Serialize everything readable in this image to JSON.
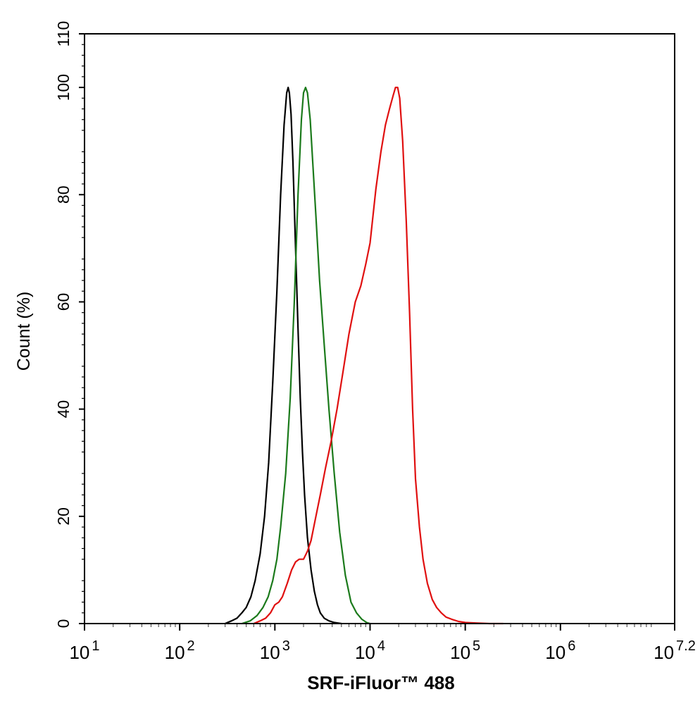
{
  "chart_data": {
    "type": "line",
    "title": "",
    "xlabel": "SRF-iFluor™ 488",
    "ylabel": "Count  (%)",
    "x_scale": "log",
    "xlim": [
      10,
      15848932
    ],
    "ylim": [
      0,
      110
    ],
    "grid": false,
    "legend": "none",
    "y_ticks": [
      {
        "value": 0,
        "label": "0"
      },
      {
        "value": 20,
        "label": "20"
      },
      {
        "value": 40,
        "label": "40"
      },
      {
        "value": 60,
        "label": "60"
      },
      {
        "value": 80,
        "label": "80"
      },
      {
        "value": 100,
        "label": "100"
      },
      {
        "value": 110,
        "label": "110"
      }
    ],
    "x_ticks": [
      {
        "value": 10,
        "base": "10",
        "exp": "1"
      },
      {
        "value": 100,
        "base": "10",
        "exp": "2"
      },
      {
        "value": 1000,
        "base": "10",
        "exp": "3"
      },
      {
        "value": 10000,
        "base": "10",
        "exp": "4"
      },
      {
        "value": 100000,
        "base": "10",
        "exp": "5"
      },
      {
        "value": 1000000,
        "base": "10",
        "exp": "6"
      },
      {
        "value": 15848932,
        "base": "10",
        "exp": "7.2"
      }
    ],
    "series": [
      {
        "color": "#000000",
        "x": [
          300,
          350,
          400,
          450,
          500,
          560,
          620,
          700,
          780,
          860,
          950,
          1050,
          1150,
          1250,
          1330,
          1380,
          1420,
          1480,
          1550,
          1650,
          1750,
          1850,
          1950,
          2050,
          2200,
          2400,
          2600,
          2800,
          3000,
          3300,
          3700,
          4200,
          5000
        ],
        "y": [
          0,
          0.5,
          1,
          2,
          3,
          5,
          8,
          13,
          20,
          30,
          45,
          62,
          80,
          93,
          99,
          100,
          99,
          95,
          86,
          70,
          55,
          42,
          32,
          24,
          16,
          10,
          6,
          3.5,
          2,
          1,
          0.5,
          0.2,
          0
        ]
      },
      {
        "color": "#1b7a1b",
        "x": [
          450,
          550,
          650,
          750,
          850,
          950,
          1050,
          1150,
          1300,
          1450,
          1600,
          1750,
          1900,
          2000,
          2100,
          2200,
          2350,
          2500,
          2700,
          2950,
          3300,
          3700,
          4200,
          4800,
          5500,
          6300,
          7200,
          8200,
          9200,
          10000
        ],
        "y": [
          0,
          0.5,
          1.5,
          3,
          5,
          8,
          12,
          18,
          28,
          42,
          60,
          80,
          94,
          99,
          100,
          99,
          94,
          86,
          76,
          64,
          52,
          40,
          28,
          17,
          9,
          4,
          2,
          0.8,
          0.2,
          0
        ]
      },
      {
        "color": "#e01010",
        "x": [
          600,
          700,
          800,
          900,
          1000,
          1100,
          1200,
          1350,
          1500,
          1650,
          1800,
          2000,
          2200,
          2400,
          2700,
          3000,
          3400,
          3900,
          4500,
          5200,
          6000,
          7000,
          8000,
          9000,
          10000,
          11500,
          13000,
          14500,
          16000,
          17500,
          18500,
          19500,
          20500,
          22000,
          24000,
          26000,
          28000,
          30000,
          33000,
          36000,
          40000,
          45000,
          50000,
          56000,
          63000,
          72000,
          85000,
          100000,
          130000,
          180000,
          250000
        ],
        "y": [
          0,
          0.5,
          1,
          2,
          3.5,
          4,
          5,
          7.5,
          10,
          11.5,
          12,
          12,
          13.5,
          15.5,
          20,
          24,
          29,
          34,
          40,
          47,
          54,
          60,
          63,
          67,
          71,
          81,
          88,
          93,
          96,
          98.5,
          100,
          100,
          98,
          90,
          75,
          58,
          40,
          27,
          18,
          12,
          7.5,
          4.5,
          3,
          2,
          1.2,
          0.8,
          0.4,
          0.2,
          0.1,
          0,
          0
        ]
      }
    ]
  }
}
